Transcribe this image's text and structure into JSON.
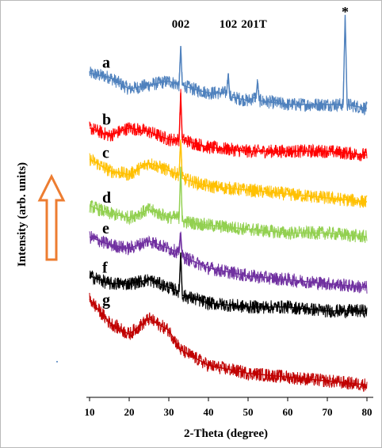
{
  "chart_data": {
    "type": "line",
    "title": "",
    "xlabel": "2-Theta (degree)",
    "ylabel": "Intensity (arb. units)",
    "xlim": [
      10,
      80
    ],
    "x_ticks": [
      10,
      20,
      30,
      40,
      50,
      60,
      70,
      80
    ],
    "peak_labels": [
      {
        "text": "002",
        "x": 33
      },
      {
        "text": "102",
        "x": 45
      },
      {
        "text": "201T",
        "x": 51.5
      },
      {
        "text": "*",
        "x": 74.5
      }
    ],
    "arrow": "up",
    "series": [
      {
        "name": "a",
        "color": "#4f81bd",
        "points": [
          [
            10,
            0.83
          ],
          [
            15,
            0.82
          ],
          [
            20,
            0.79
          ],
          [
            25,
            0.8
          ],
          [
            30,
            0.81
          ],
          [
            32.6,
            0.8
          ],
          [
            33,
            0.9
          ],
          [
            33.4,
            0.8
          ],
          [
            36,
            0.79
          ],
          [
            40,
            0.78
          ],
          [
            44.6,
            0.78
          ],
          [
            45,
            0.83
          ],
          [
            45.4,
            0.77
          ],
          [
            50,
            0.76
          ],
          [
            52,
            0.77
          ],
          [
            52.4,
            0.81
          ],
          [
            52.8,
            0.76
          ],
          [
            60,
            0.75
          ],
          [
            70,
            0.75
          ],
          [
            74,
            0.75
          ],
          [
            74.5,
            0.98
          ],
          [
            75,
            0.75
          ],
          [
            80,
            0.74
          ]
        ]
      },
      {
        "name": "b",
        "color": "#ff0000",
        "points": [
          [
            10,
            0.69
          ],
          [
            15,
            0.67
          ],
          [
            20,
            0.69
          ],
          [
            25,
            0.68
          ],
          [
            30,
            0.66
          ],
          [
            32.6,
            0.66
          ],
          [
            33,
            0.78
          ],
          [
            33.4,
            0.66
          ],
          [
            40,
            0.64
          ],
          [
            50,
            0.63
          ],
          [
            60,
            0.63
          ],
          [
            70,
            0.63
          ],
          [
            80,
            0.62
          ]
        ]
      },
      {
        "name": "c",
        "color": "#ffc000",
        "points": [
          [
            10,
            0.61
          ],
          [
            15,
            0.58
          ],
          [
            20,
            0.57
          ],
          [
            25,
            0.6
          ],
          [
            30,
            0.58
          ],
          [
            32.6,
            0.57
          ],
          [
            33,
            0.66
          ],
          [
            33.4,
            0.56
          ],
          [
            40,
            0.54
          ],
          [
            50,
            0.53
          ],
          [
            60,
            0.52
          ],
          [
            70,
            0.51
          ],
          [
            80,
            0.5
          ]
        ]
      },
      {
        "name": "d",
        "color": "#92d050",
        "points": [
          [
            10,
            0.49
          ],
          [
            15,
            0.47
          ],
          [
            20,
            0.46
          ],
          [
            25,
            0.48
          ],
          [
            30,
            0.46
          ],
          [
            32.6,
            0.46
          ],
          [
            33,
            0.59
          ],
          [
            33.4,
            0.45
          ],
          [
            40,
            0.44
          ],
          [
            50,
            0.43
          ],
          [
            60,
            0.42
          ],
          [
            70,
            0.42
          ],
          [
            80,
            0.41
          ]
        ]
      },
      {
        "name": "e",
        "color": "#7030a0",
        "points": [
          [
            10,
            0.41
          ],
          [
            15,
            0.39
          ],
          [
            20,
            0.38
          ],
          [
            25,
            0.4
          ],
          [
            30,
            0.38
          ],
          [
            32.6,
            0.37
          ],
          [
            33,
            0.42
          ],
          [
            33.4,
            0.36
          ],
          [
            40,
            0.33
          ],
          [
            50,
            0.31
          ],
          [
            60,
            0.3
          ],
          [
            70,
            0.29
          ],
          [
            80,
            0.28
          ]
        ]
      },
      {
        "name": "f",
        "color": "#000000",
        "points": [
          [
            10,
            0.31
          ],
          [
            15,
            0.29
          ],
          [
            20,
            0.29
          ],
          [
            25,
            0.3
          ],
          [
            30,
            0.28
          ],
          [
            32.6,
            0.27
          ],
          [
            33,
            0.37
          ],
          [
            33.4,
            0.26
          ],
          [
            40,
            0.24
          ],
          [
            50,
            0.23
          ],
          [
            60,
            0.23
          ],
          [
            70,
            0.22
          ],
          [
            80,
            0.22
          ]
        ]
      },
      {
        "name": "g",
        "color": "#c00000",
        "points": [
          [
            10,
            0.25
          ],
          [
            15,
            0.19
          ],
          [
            20,
            0.16
          ],
          [
            25,
            0.2
          ],
          [
            30,
            0.17
          ],
          [
            33,
            0.12
          ],
          [
            40,
            0.08
          ],
          [
            50,
            0.06
          ],
          [
            60,
            0.05
          ],
          [
            70,
            0.04
          ],
          [
            80,
            0.03
          ]
        ]
      }
    ]
  }
}
